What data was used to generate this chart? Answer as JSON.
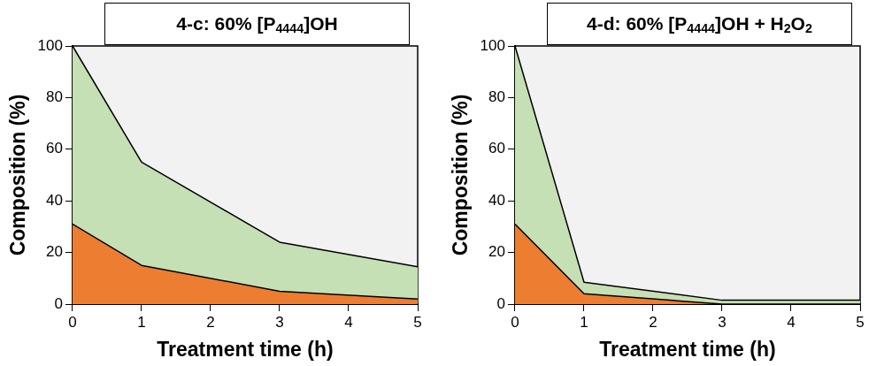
{
  "chart_data": [
    {
      "type": "area",
      "title": "4-c: 60% [P$_{4444}$]OH",
      "xlabel": "Treatment time (h)",
      "ylabel": "Composition (%)",
      "x": [
        0,
        1,
        3,
        5
      ],
      "stacked": true,
      "series": [
        {
          "color": "#ed7d31",
          "values": [
            31,
            15,
            5,
            2
          ]
        },
        {
          "color": "#c5e0b4",
          "values": [
            69,
            40,
            19,
            12.5
          ]
        }
      ],
      "xlim": [
        0,
        5
      ],
      "xticks": [
        0,
        1,
        2,
        3,
        4,
        5
      ],
      "ylim": [
        0,
        100
      ],
      "yticks": [
        0,
        20,
        40,
        60,
        80,
        100
      ],
      "grid": false,
      "legend": false
    },
    {
      "type": "area",
      "title": "4-d: 60% [P$_{4444}$]OH + H$_{2}$O$_{2}$",
      "xlabel": "Treatment time (h)",
      "ylabel": "Composition (%)",
      "x": [
        0,
        1,
        3,
        5
      ],
      "stacked": true,
      "series": [
        {
          "color": "#ed7d31",
          "values": [
            31,
            4,
            0,
            0
          ]
        },
        {
          "color": "#c5e0b4",
          "values": [
            69,
            4.5,
            1.5,
            1.5
          ]
        }
      ],
      "xlim": [
        0,
        5
      ],
      "xticks": [
        0,
        1,
        2,
        3,
        4,
        5
      ],
      "ylim": [
        0,
        100
      ],
      "yticks": [
        0,
        20,
        40,
        60,
        80,
        100
      ],
      "grid": false,
      "legend": false
    }
  ]
}
